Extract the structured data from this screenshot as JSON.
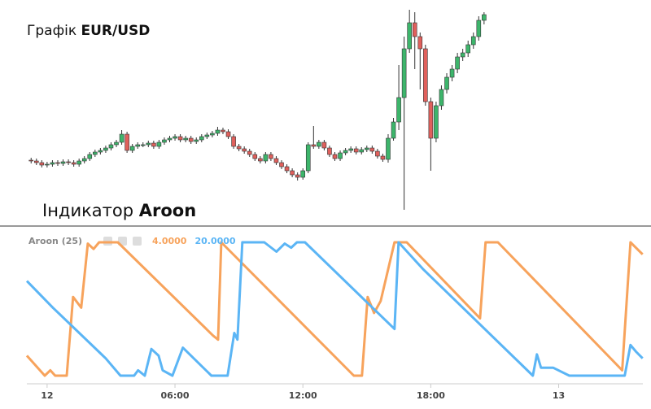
{
  "chart_data": [
    {
      "type": "candlestick",
      "title": "Графік",
      "symbol": "EUR/USD",
      "up_color": "#3db56b",
      "down_color": "#e0605c",
      "xlim": [
        -0.95,
        27.95
      ],
      "ylim": [
        0,
        250
      ],
      "x": [
        -0.75,
        -0.5,
        -0.25,
        0,
        0.25,
        0.5,
        0.75,
        1,
        1.25,
        1.5,
        1.75,
        2,
        2.25,
        2.5,
        2.75,
        3,
        3.25,
        3.5,
        3.75,
        4,
        4.25,
        4.5,
        4.75,
        5,
        5.25,
        5.5,
        5.75,
        6,
        6.25,
        6.5,
        6.75,
        7,
        7.25,
        7.5,
        7.75,
        8,
        8.25,
        8.5,
        8.75,
        9,
        9.25,
        9.5,
        9.75,
        10,
        10.25,
        10.5,
        10.75,
        11,
        11.25,
        11.5,
        11.75,
        12,
        12.25,
        12.5,
        12.75,
        13,
        13.25,
        13.5,
        13.75,
        14,
        14.25,
        14.5,
        14.75,
        15,
        15.25,
        15.5,
        15.75,
        16,
        16.25,
        16.5,
        16.75,
        17,
        17.25,
        17.5,
        17.75,
        18,
        18.25,
        18.5,
        18.75,
        19,
        19.25,
        19.5,
        19.75,
        20,
        20.25,
        20.5
      ],
      "open": [
        63,
        62,
        60,
        57,
        58,
        60,
        59,
        61,
        60,
        58,
        62,
        65,
        70,
        73,
        75,
        78,
        82,
        85,
        95,
        75,
        80,
        82,
        82,
        84,
        80,
        85,
        88,
        90,
        92,
        88,
        90,
        86,
        88,
        92,
        94,
        96,
        100,
        98,
        92,
        80,
        77,
        74,
        70,
        65,
        62,
        70,
        65,
        60,
        55,
        50,
        45,
        42,
        50,
        82,
        80,
        85,
        78,
        70,
        65,
        72,
        75,
        77,
        73,
        76,
        78,
        74,
        68,
        64,
        90,
        110,
        140,
        200,
        232,
        215,
        200,
        135,
        90,
        130,
        150,
        165,
        175,
        190,
        195,
        205,
        215,
        235
      ],
      "high": [
        66,
        65,
        63,
        61,
        63,
        63,
        64,
        64,
        63,
        65,
        68,
        73,
        76,
        78,
        81,
        85,
        88,
        100,
        98,
        83,
        85,
        85,
        87,
        87,
        88,
        91,
        93,
        95,
        95,
        93,
        93,
        91,
        95,
        97,
        99,
        104,
        103,
        101,
        95,
        83,
        80,
        77,
        73,
        68,
        73,
        73,
        68,
        63,
        58,
        53,
        48,
        53,
        85,
        105,
        88,
        88,
        81,
        73,
        75,
        78,
        80,
        80,
        79,
        81,
        81,
        77,
        71,
        95,
        115,
        180,
        215,
        248,
        245,
        220,
        205,
        140,
        135,
        155,
        170,
        180,
        195,
        200,
        210,
        220,
        240,
        245
      ],
      "low": [
        59,
        57,
        54,
        54,
        55,
        56,
        56,
        57,
        55,
        55,
        59,
        62,
        67,
        70,
        72,
        75,
        79,
        82,
        72,
        72,
        77,
        79,
        79,
        77,
        77,
        82,
        85,
        87,
        85,
        85,
        83,
        83,
        85,
        89,
        91,
        93,
        95,
        89,
        77,
        74,
        71,
        67,
        62,
        59,
        59,
        62,
        57,
        52,
        47,
        42,
        38,
        39,
        47,
        77,
        77,
        75,
        67,
        62,
        62,
        69,
        72,
        70,
        70,
        73,
        71,
        65,
        61,
        60,
        87,
        100,
        2,
        195,
        175,
        150,
        130,
        50,
        85,
        125,
        145,
        160,
        170,
        185,
        190,
        200,
        210,
        230
      ],
      "close": [
        62,
        60,
        57,
        58,
        60,
        59,
        61,
        60,
        58,
        62,
        65,
        70,
        73,
        75,
        78,
        82,
        85,
        95,
        75,
        80,
        82,
        82,
        84,
        80,
        85,
        88,
        90,
        92,
        88,
        90,
        86,
        88,
        92,
        94,
        96,
        100,
        98,
        92,
        80,
        77,
        74,
        70,
        65,
        62,
        70,
        65,
        60,
        55,
        50,
        45,
        42,
        50,
        82,
        80,
        85,
        78,
        70,
        65,
        72,
        75,
        77,
        73,
        76,
        78,
        74,
        68,
        64,
        90,
        110,
        140,
        200,
        232,
        215,
        200,
        135,
        90,
        130,
        150,
        165,
        175,
        190,
        195,
        205,
        215,
        235,
        242
      ]
    },
    {
      "type": "line",
      "title": "Індикатор",
      "indicator": "Aroon",
      "indicator_label": "Aroon (25)",
      "xlim": [
        -0.95,
        27.95
      ],
      "ylim": [
        0,
        100
      ],
      "xticks": [
        {
          "value": 0,
          "label": "12"
        },
        {
          "value": 6,
          "label": "06:00"
        },
        {
          "value": 12,
          "label": "12:00"
        },
        {
          "value": 18,
          "label": "18:00"
        },
        {
          "value": 24,
          "label": "13"
        }
      ],
      "series": [
        {
          "name": "4.0000",
          "color": "#f7a35c",
          "x": [
            -0.95,
            -0.11,
            0.15,
            0.38,
            0.92,
            1.22,
            1.6,
            1.91,
            2.18,
            2.44,
            3.32,
            7.79,
            8.02,
            8.17,
            14.39,
            14.77,
            15.04,
            15.34,
            15.65,
            16.3,
            16.87,
            20.31,
            20.57,
            21.15,
            26.98,
            27.37,
            27.94
          ],
          "values": [
            15,
            0,
            4,
            0,
            0,
            59,
            51,
            99,
            95,
            100,
            100,
            30,
            27,
            100,
            0,
            0,
            59,
            47,
            56,
            100,
            100,
            43,
            100,
            100,
            4,
            100,
            91
          ]
        },
        {
          "name": "20.0000",
          "color": "#5bb5f5",
          "x": [
            -0.95,
            0.27,
            2.75,
            3.44,
            4.08,
            4.27,
            4.58,
            4.89,
            5.23,
            5.42,
            5.88,
            6.37,
            7.71,
            8.47,
            8.78,
            8.93,
            9.16,
            10.19,
            10.76,
            11.15,
            11.45,
            11.72,
            12.1,
            16.3,
            16.49,
            17.63,
            22.79,
            22.98,
            23.17,
            23.74,
            24.5,
            25.27,
            25.84,
            27.1,
            27.37,
            27.63,
            27.94
          ],
          "values": [
            71,
            51,
            13,
            0,
            0,
            4,
            0,
            20,
            15,
            4,
            0,
            21,
            0,
            0,
            32,
            27,
            100,
            100,
            93,
            99,
            96,
            100,
            100,
            35,
            100,
            80,
            0,
            16,
            6,
            6,
            0,
            0,
            0,
            0,
            23,
            18,
            13
          ]
        }
      ]
    }
  ]
}
